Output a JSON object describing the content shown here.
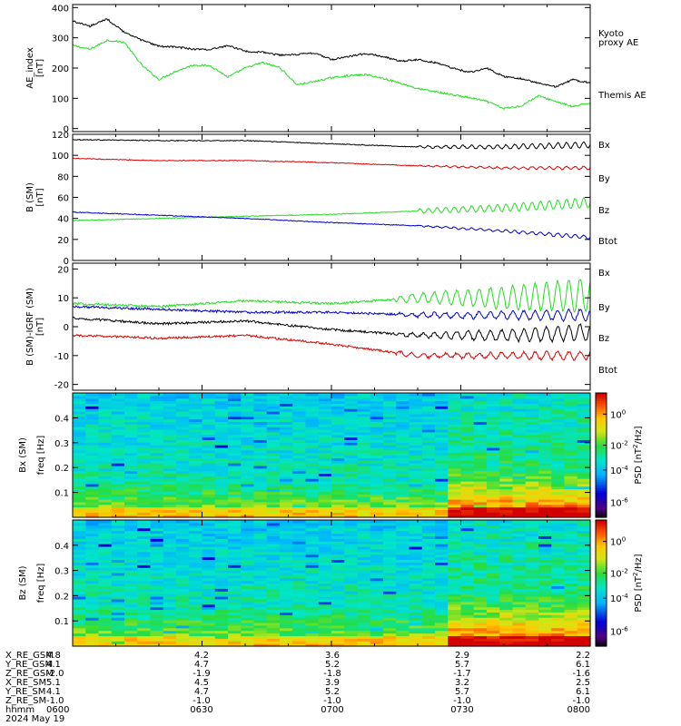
{
  "colors": {
    "black": "#000000",
    "red": "#dd0000",
    "green": "#22dd22",
    "blue": "#0000cc"
  },
  "chart_data": [
    {
      "type": "line",
      "ylabel": "AE_index [nT]",
      "ylim": [
        -10,
        410
      ],
      "yticks": [
        0,
        100,
        200,
        300,
        400
      ],
      "xlim": [
        0,
        120
      ],
      "series": [
        {
          "name": "Kyoto proxy AE",
          "color": "#22dd22",
          "x": [
            0,
            4,
            8,
            12,
            16,
            20,
            24,
            28,
            32,
            36,
            40,
            44,
            48,
            52,
            56,
            60,
            64,
            68,
            72,
            76,
            80,
            84,
            88,
            92,
            96,
            100,
            104,
            108,
            112,
            116,
            120
          ],
          "y": [
            275,
            262,
            292,
            285,
            210,
            162,
            190,
            210,
            207,
            170,
            200,
            218,
            202,
            145,
            155,
            168,
            175,
            178,
            166,
            150,
            132,
            122,
            112,
            102,
            90,
            66,
            75,
            108,
            90,
            72,
            85
          ]
        },
        {
          "name": "Themis AE",
          "color": "#000000",
          "x": [
            0,
            4,
            8,
            12,
            16,
            20,
            24,
            28,
            32,
            36,
            40,
            44,
            48,
            52,
            56,
            60,
            64,
            68,
            72,
            76,
            80,
            84,
            88,
            92,
            96,
            100,
            104,
            108,
            112,
            116,
            120
          ],
          "y": [
            355,
            338,
            362,
            318,
            292,
            272,
            270,
            262,
            262,
            274,
            256,
            252,
            243,
            245,
            250,
            228,
            238,
            248,
            238,
            222,
            228,
            218,
            200,
            186,
            200,
            172,
            165,
            150,
            138,
            162,
            150
          ]
        }
      ],
      "legend_position": "right"
    },
    {
      "type": "line",
      "ylabel": "B (SM) [nT]",
      "ylim": [
        0,
        120
      ],
      "yticks": [
        0,
        20,
        40,
        60,
        80,
        100,
        120
      ],
      "xlim": [
        0,
        120
      ],
      "series": [
        {
          "name": "Bx",
          "color": "#000000",
          "x": [
            0,
            20,
            40,
            60,
            80,
            100,
            120
          ],
          "y": [
            115,
            114,
            114,
            111,
            108,
            108,
            110
          ],
          "oscillation": {
            "start": 80,
            "amp_start": 1,
            "amp_end": 3,
            "period": 2
          }
        },
        {
          "name": "By",
          "color": "#dd0000",
          "x": [
            0,
            20,
            40,
            60,
            80,
            100,
            120
          ],
          "y": [
            97,
            95,
            95,
            93,
            90,
            88,
            88
          ],
          "oscillation": {
            "start": 80,
            "amp_start": 0.5,
            "amp_end": 1.5,
            "period": 2
          }
        },
        {
          "name": "Bz",
          "color": "#22dd22",
          "x": [
            0,
            20,
            40,
            60,
            80,
            100,
            120
          ],
          "y": [
            38,
            40,
            42,
            44,
            47,
            50,
            55
          ],
          "oscillation": {
            "start": 80,
            "amp_start": 2,
            "amp_end": 5,
            "period": 2
          }
        },
        {
          "name": "Btot",
          "color": "#0000cc",
          "x": [
            0,
            20,
            40,
            60,
            80,
            100,
            120
          ],
          "y": [
            46,
            43,
            40,
            36,
            33,
            28,
            22
          ],
          "oscillation": {
            "start": 80,
            "amp_start": 0.5,
            "amp_end": 2,
            "period": 2
          }
        }
      ],
      "legend_position": "right"
    },
    {
      "type": "line",
      "ylabel": "B (SM)-IGRF (SM) [nT]",
      "ylim": [
        -22,
        22
      ],
      "yticks": [
        -20,
        -10,
        0,
        10,
        20
      ],
      "xlim": [
        0,
        120
      ],
      "series": [
        {
          "name": "Bx",
          "color": "#22dd22",
          "x": [
            0,
            20,
            40,
            60,
            80,
            100,
            120
          ],
          "y": [
            8,
            7,
            9,
            8,
            10,
            10,
            11
          ],
          "oscillation": {
            "start": 75,
            "amp_start": 1,
            "amp_end": 6,
            "period": 2.6
          }
        },
        {
          "name": "By",
          "color": "#0000cc",
          "x": [
            0,
            20,
            40,
            60,
            80,
            100,
            120
          ],
          "y": [
            7,
            6,
            5,
            5,
            4,
            4,
            4
          ],
          "oscillation": {
            "start": 75,
            "amp_start": 0.5,
            "amp_end": 2,
            "period": 2.6
          }
        },
        {
          "name": "Bz",
          "color": "#000000",
          "x": [
            0,
            20,
            40,
            60,
            80,
            100,
            120
          ],
          "y": [
            3,
            1,
            2,
            -1,
            -3,
            -3,
            -2
          ],
          "oscillation": {
            "start": 75,
            "amp_start": 0.5,
            "amp_end": 3,
            "period": 2.6
          }
        },
        {
          "name": "Btot",
          "color": "#dd0000",
          "x": [
            0,
            20,
            40,
            60,
            80,
            100,
            120
          ],
          "y": [
            -3,
            -4,
            -3,
            -6,
            -10,
            -10,
            -10
          ],
          "oscillation": {
            "start": 75,
            "amp_start": 0.5,
            "amp_end": 1.5,
            "period": 2.6
          }
        }
      ],
      "legend_position": "right"
    },
    {
      "type": "heatmap",
      "ylabel": "Bx (SM) freq [Hz]",
      "ylim": [
        0,
        0.5
      ],
      "yticks": [
        0.1,
        0.2,
        0.3,
        0.4
      ],
      "zlabel": "PSD [nT^2/Hz]",
      "colorbar_ticks": [
        "10^0",
        "10^-2",
        "10^-4",
        "10^-6"
      ],
      "ncols": 40,
      "nrows": 48,
      "seed": 11
    },
    {
      "type": "heatmap",
      "ylabel": "Bz (SM) freq [Hz]",
      "ylim": [
        0,
        0.5
      ],
      "yticks": [
        0.1,
        0.2,
        0.3,
        0.4
      ],
      "zlabel": "PSD [nT^2/Hz]",
      "colorbar_ticks": [
        "10^0",
        "10^-2",
        "10^-4",
        "10^-6"
      ],
      "ncols": 40,
      "nrows": 48,
      "seed": 29
    }
  ],
  "ephemeris": {
    "rows": [
      {
        "label": "X_RE_GSM",
        "values": [
          "4.8",
          "4.2",
          "3.6",
          "2.9",
          "2.2"
        ]
      },
      {
        "label": "Y_RE_GSM",
        "values": [
          "4.1",
          "4.7",
          "5.2",
          "5.7",
          "6.1"
        ]
      },
      {
        "label": "Z_RE_GSM",
        "values": [
          "-2.0",
          "-1.9",
          "-1.8",
          "-1.7",
          "-1.6"
        ]
      },
      {
        "label": "X_RE_SM",
        "values": [
          "5.1",
          "4.5",
          "3.9",
          "3.2",
          "2.5"
        ]
      },
      {
        "label": "Y_RE_SM",
        "values": [
          "4.1",
          "4.7",
          "5.2",
          "5.7",
          "6.1"
        ]
      },
      {
        "label": "Z_RE_SM",
        "values": [
          "-1.0",
          "-1.0",
          "-1.0",
          "-1.0",
          "-1.0"
        ]
      },
      {
        "label": "hhmm",
        "values": [
          "0600",
          "0630",
          "0700",
          "0730",
          "0800"
        ]
      }
    ],
    "date": "2024 May 19"
  }
}
